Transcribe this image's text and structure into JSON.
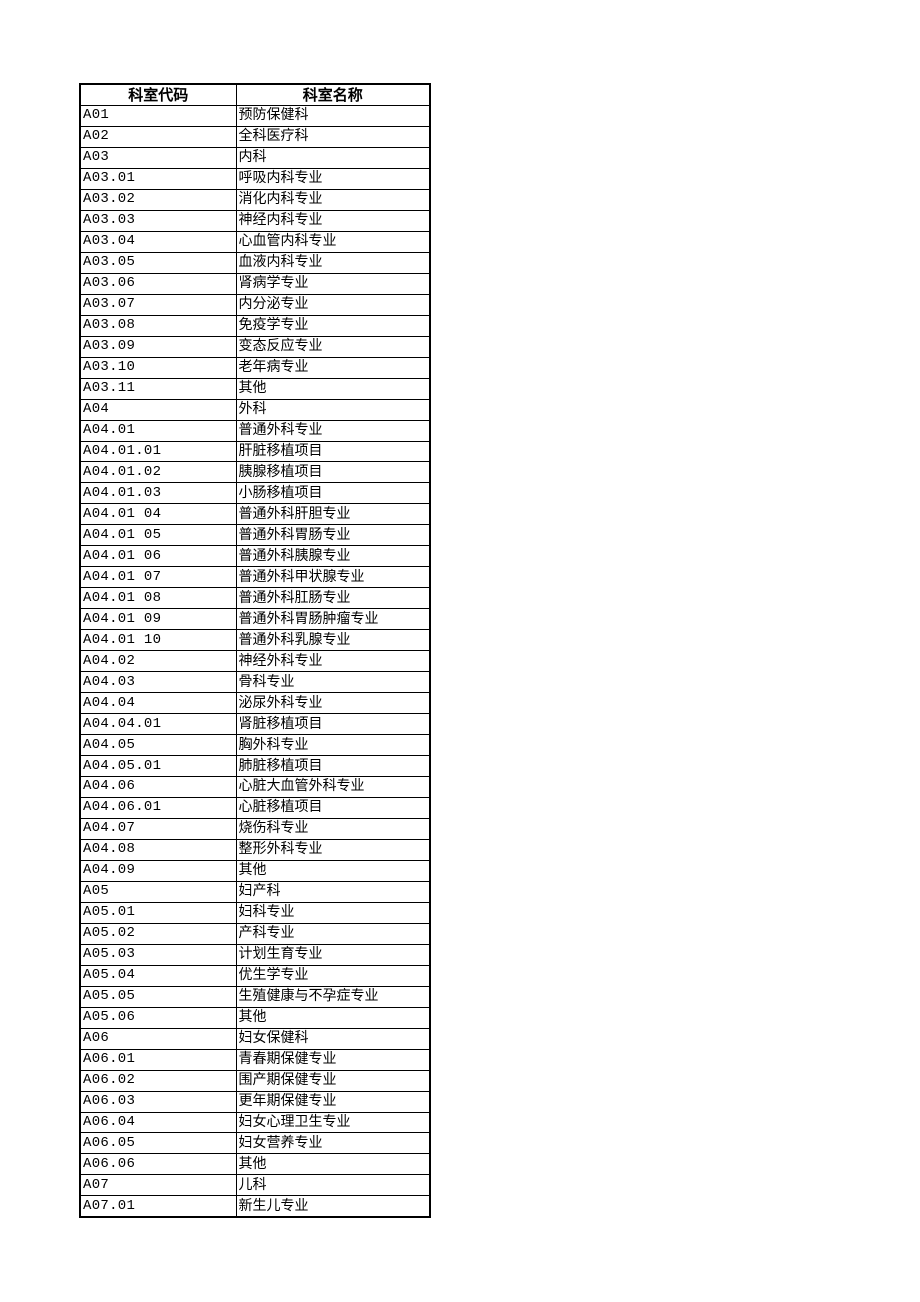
{
  "table": {
    "headers": [
      "科室代码",
      "科室名称"
    ],
    "rows": [
      [
        "A01",
        "预防保健科"
      ],
      [
        "A02",
        "全科医疗科"
      ],
      [
        "A03",
        "内科"
      ],
      [
        "A03.01",
        "呼吸内科专业"
      ],
      [
        "A03.02",
        "消化内科专业"
      ],
      [
        "A03.03",
        "神经内科专业"
      ],
      [
        "A03.04",
        "心血管内科专业"
      ],
      [
        "A03.05",
        "血液内科专业"
      ],
      [
        "A03.06",
        "肾病学专业"
      ],
      [
        "A03.07",
        "内分泌专业"
      ],
      [
        "A03.08",
        "免疫学专业"
      ],
      [
        "A03.09",
        "变态反应专业"
      ],
      [
        "A03.10",
        "老年病专业"
      ],
      [
        "A03.11",
        "其他"
      ],
      [
        "A04",
        "外科"
      ],
      [
        "A04.01",
        "普通外科专业"
      ],
      [
        "A04.01.01",
        "肝脏移植项目"
      ],
      [
        "A04.01.02",
        "胰腺移植项目"
      ],
      [
        "A04.01.03",
        "小肠移植项目"
      ],
      [
        "A04.01 04",
        "普通外科肝胆专业"
      ],
      [
        "A04.01 05",
        "普通外科胃肠专业"
      ],
      [
        "A04.01 06",
        "普通外科胰腺专业"
      ],
      [
        "A04.01 07",
        "普通外科甲状腺专业"
      ],
      [
        "A04.01 08",
        "普通外科肛肠专业"
      ],
      [
        "A04.01 09",
        "普通外科胃肠肿瘤专业"
      ],
      [
        "A04.01 10",
        "普通外科乳腺专业"
      ],
      [
        "A04.02",
        "神经外科专业"
      ],
      [
        "A04.03",
        "骨科专业"
      ],
      [
        "A04.04",
        "泌尿外科专业"
      ],
      [
        "A04.04.01",
        "肾脏移植项目"
      ],
      [
        "A04.05",
        "胸外科专业"
      ],
      [
        "A04.05.01",
        "肺脏移植项目"
      ],
      [
        "A04.06",
        "心脏大血管外科专业"
      ],
      [
        "A04.06.01",
        "心脏移植项目"
      ],
      [
        "A04.07",
        "烧伤科专业"
      ],
      [
        "A04.08",
        "整形外科专业"
      ],
      [
        "A04.09",
        "其他"
      ],
      [
        "A05",
        "妇产科"
      ],
      [
        "A05.01",
        "妇科专业"
      ],
      [
        "A05.02",
        "产科专业"
      ],
      [
        "A05.03",
        "计划生育专业"
      ],
      [
        "A05.04",
        "优生学专业"
      ],
      [
        "A05.05",
        "生殖健康与不孕症专业"
      ],
      [
        "A05.06",
        "其他"
      ],
      [
        "A06",
        "妇女保健科"
      ],
      [
        "A06.01",
        "青春期保健专业"
      ],
      [
        "A06.02",
        "围产期保健专业"
      ],
      [
        "A06.03",
        "更年期保健专业"
      ],
      [
        "A06.04",
        "妇女心理卫生专业"
      ],
      [
        "A06.05",
        "妇女营养专业"
      ],
      [
        "A06.06",
        "其他"
      ],
      [
        "A07",
        "儿科"
      ],
      [
        "A07.01",
        "新生儿专业"
      ]
    ]
  }
}
